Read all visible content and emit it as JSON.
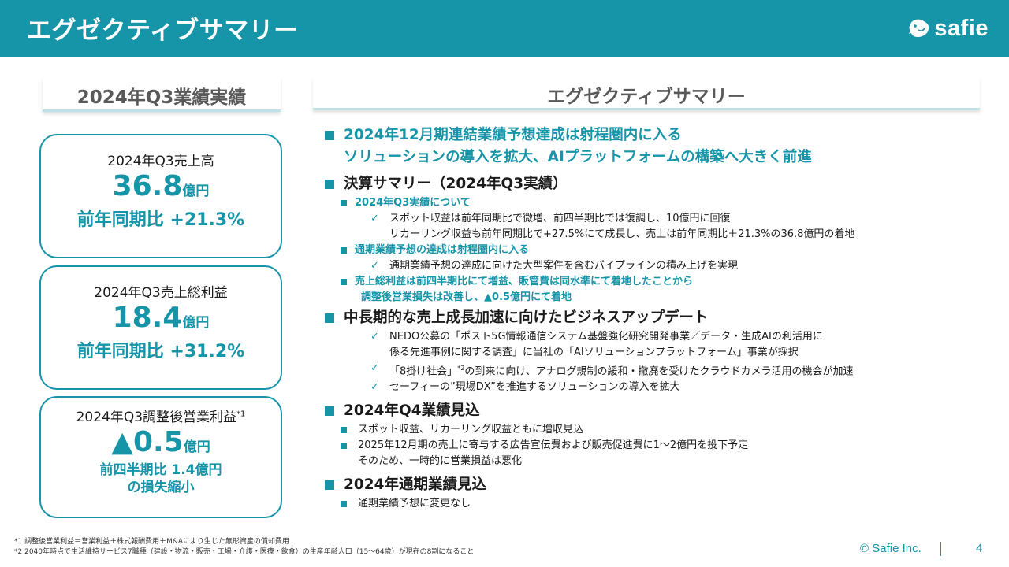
{
  "header": {
    "title": "エグゼクティブサマリー",
    "logo_text": "safie",
    "logo_icon": "safie-bird-logo"
  },
  "left_heading": "2024年Q3業績実績",
  "right_heading": "エグゼクティブサマリー",
  "cards": [
    {
      "label": "2024年Q3売上高",
      "value": "36.8",
      "unit": "億円",
      "sub": "前年同期比 +21.3%"
    },
    {
      "label": "2024年Q3売上総利益",
      "value": "18.4",
      "unit": "億円",
      "sub": "前年同期比 +31.2%"
    },
    {
      "label": "2024年Q3調整後営業利益",
      "label_sup": "*1",
      "value": "▲0.5",
      "unit": "億円",
      "sub_line1": "前四半期比 1.4億円",
      "sub_line2": "の損失縮小"
    }
  ],
  "summary": {
    "headline_1": "2024年12月期連結業績予想達成は射程圏内に入る",
    "headline_2": "ソリューションの導入を拡大、AIプラットフォームの構築へ大きく前進",
    "section_kessan": {
      "title": "決算サマリー（2024年Q3実績）",
      "sub1": "2024年Q3実績について",
      "sub1_check_line1": "スポット収益は前年同期比で微増、前四半期比では復調し、10億円に回復",
      "sub1_check_line2": "リカーリング収益も前年同期比で+27.5%にて成長し、売上は前年同期比＋21.3%の36.8億円の着地",
      "sub2": "通期業績予想の達成は射程圏内に入る",
      "sub2_check": "通期業績予想の達成に向けた大型案件を含むパイプラインの積み上げを実現",
      "sub3_line1": "売上総利益は前四半期比にて増益、販管費は同水準にて着地したことから",
      "sub3_line2": "調整後営業損失は改善し、▲0.5億円にて着地"
    },
    "section_business": {
      "title": "中長期的な売上成長加速に向けたビジネスアップデート",
      "check1_line1": "NEDO公募の「ポスト5G情報通信システム基盤強化研究開発事業／データ・生成AIの利活用に",
      "check1_line2": "係る先進事例に関する調査」に当社の「AIソリューションプラットフォーム」事業が採択",
      "check2_pre": "「8掛け社会」",
      "check2_sup": "*2",
      "check2_post": "の到来に向け、アナログ規制の緩和・撤廃を受けたクラウドカメラ活用の機会が加速",
      "check3": "セーフィーの”現場DX”を推進するソリューションの導入を拡大"
    },
    "section_q4": {
      "title": "2024年Q4業績見込",
      "item1": "スポット収益、リカーリング収益ともに増収見込",
      "item2_line1": "2025年12月期の売上に寄与する広告宣伝費および販売促進費に1～2億円を投下予定",
      "item2_line2": "そのため、一時的に営業損益は悪化"
    },
    "section_full_year": {
      "title": "2024年通期業績見込",
      "item1": "通期業績予想に変更なし"
    }
  },
  "footnotes": {
    "note1": "*1 調整後営業利益＝営業利益＋株式報酬費用＋M&Aにより生じた無形資産の償却費用",
    "note2": "*2 2040年時点で生活維持サービス7職種（建設・物流・販売・工場・介護・医療・飲食）の生産年齢人口（15～64歳）が現在の8割になること"
  },
  "footer": {
    "copyright": "© Safie Inc.",
    "page_number": "4"
  },
  "colors": {
    "accent": "#1795a8",
    "heading_gray": "#595959"
  }
}
